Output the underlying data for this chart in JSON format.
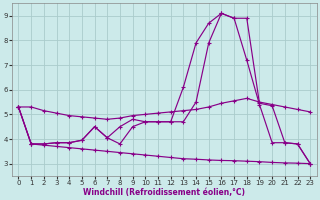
{
  "background_color": "#cceaea",
  "grid_color": "#aacccc",
  "line_color": "#880088",
  "xlabel": "Windchill (Refroidissement éolien,°C)",
  "xlim": [
    -0.5,
    23.5
  ],
  "ylim": [
    2.5,
    9.5
  ],
  "xticks": [
    0,
    1,
    2,
    3,
    4,
    5,
    6,
    7,
    8,
    9,
    10,
    11,
    12,
    13,
    14,
    15,
    16,
    17,
    18,
    19,
    20,
    21,
    22,
    23
  ],
  "yticks": [
    3,
    4,
    5,
    6,
    7,
    8,
    9
  ],
  "lines": [
    {
      "x": [
        0,
        1,
        2,
        3,
        4,
        5,
        6,
        7,
        8,
        9,
        10,
        11,
        12,
        13,
        14,
        15,
        16,
        17,
        18,
        19,
        20,
        21,
        22,
        23
      ],
      "y": [
        5.3,
        5.3,
        5.15,
        5.05,
        4.95,
        4.9,
        4.85,
        4.8,
        4.85,
        4.95,
        5.0,
        5.05,
        5.1,
        5.15,
        5.2,
        5.3,
        5.45,
        5.55,
        5.65,
        5.5,
        5.4,
        5.3,
        5.2,
        5.1
      ]
    },
    {
      "x": [
        0,
        1,
        2,
        3,
        4,
        5,
        6,
        7,
        8,
        9,
        10,
        11,
        12,
        13,
        14,
        15,
        16,
        17,
        18,
        19,
        20,
        21,
        22,
        23
      ],
      "y": [
        5.3,
        3.8,
        3.8,
        3.85,
        3.85,
        3.95,
        4.5,
        4.05,
        3.8,
        4.5,
        4.7,
        4.7,
        4.7,
        6.1,
        7.9,
        8.7,
        9.1,
        8.9,
        8.9,
        5.45,
        5.35,
        3.85,
        3.8,
        3.0
      ]
    },
    {
      "x": [
        0,
        1,
        2,
        3,
        4,
        5,
        6,
        7,
        8,
        9,
        10,
        11,
        12,
        13,
        14,
        15,
        16,
        17,
        18,
        19,
        20,
        21,
        22,
        23
      ],
      "y": [
        5.3,
        3.8,
        3.8,
        3.85,
        3.85,
        3.95,
        4.5,
        4.05,
        4.5,
        4.8,
        4.7,
        4.7,
        4.7,
        4.7,
        5.5,
        7.9,
        9.1,
        8.9,
        7.2,
        5.4,
        3.85,
        3.85,
        3.8,
        3.0
      ]
    },
    {
      "x": [
        0,
        1,
        2,
        3,
        4,
        5,
        6,
        7,
        8,
        9,
        10,
        11,
        12,
        13,
        14,
        15,
        16,
        17,
        18,
        19,
        20,
        21,
        22,
        23
      ],
      "y": [
        5.3,
        3.8,
        3.75,
        3.7,
        3.65,
        3.6,
        3.55,
        3.5,
        3.45,
        3.4,
        3.35,
        3.3,
        3.25,
        3.2,
        3.18,
        3.15,
        3.13,
        3.12,
        3.1,
        3.08,
        3.05,
        3.03,
        3.02,
        3.0
      ]
    }
  ]
}
